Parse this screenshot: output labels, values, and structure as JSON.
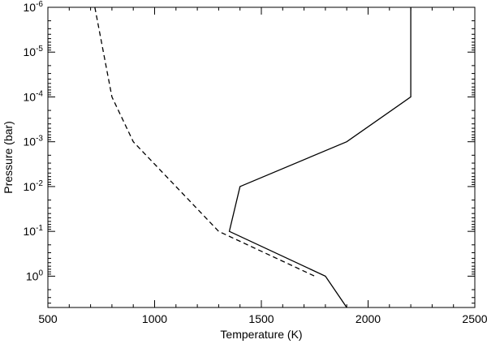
{
  "chart_data": {
    "type": "line",
    "title": "",
    "xlabel": "Temperature (K)",
    "ylabel": "Pressure (bar)",
    "xlim": [
      500,
      2500
    ],
    "ylim": [
      5,
      1e-06
    ],
    "y_scale": "log",
    "y_inverted": true,
    "grid": false,
    "x_ticks": [
      500,
      1000,
      1500,
      2000,
      2500
    ],
    "x_tick_labels": [
      "500",
      "1000",
      "1500",
      "2000",
      "2500"
    ],
    "y_ticks": [
      1e-06,
      1e-05,
      0.0001,
      0.001,
      0.01,
      0.1,
      1
    ],
    "y_tick_labels": [
      {
        "base": "10",
        "exp": "-6"
      },
      {
        "base": "10",
        "exp": "-5"
      },
      {
        "base": "10",
        "exp": "-4"
      },
      {
        "base": "10",
        "exp": "-3"
      },
      {
        "base": "10",
        "exp": "-2"
      },
      {
        "base": "10",
        "exp": "-1"
      },
      {
        "base": "10",
        "exp": "0"
      }
    ],
    "series": [
      {
        "style": "solid",
        "color": "#000000",
        "points": [
          {
            "x": 2200,
            "y": 1e-06
          },
          {
            "x": 2200,
            "y": 0.0001
          },
          {
            "x": 1900,
            "y": 0.001
          },
          {
            "x": 1400,
            "y": 0.01
          },
          {
            "x": 1350,
            "y": 0.1
          },
          {
            "x": 1800,
            "y": 1
          },
          {
            "x": 1900,
            "y": 5
          }
        ]
      },
      {
        "style": "dashed",
        "color": "#000000",
        "points": [
          {
            "x": 720,
            "y": 1e-06
          },
          {
            "x": 800,
            "y": 0.0001
          },
          {
            "x": 900,
            "y": 0.001
          },
          {
            "x": 1300,
            "y": 0.1
          },
          {
            "x": 1750,
            "y": 1
          }
        ]
      }
    ]
  }
}
